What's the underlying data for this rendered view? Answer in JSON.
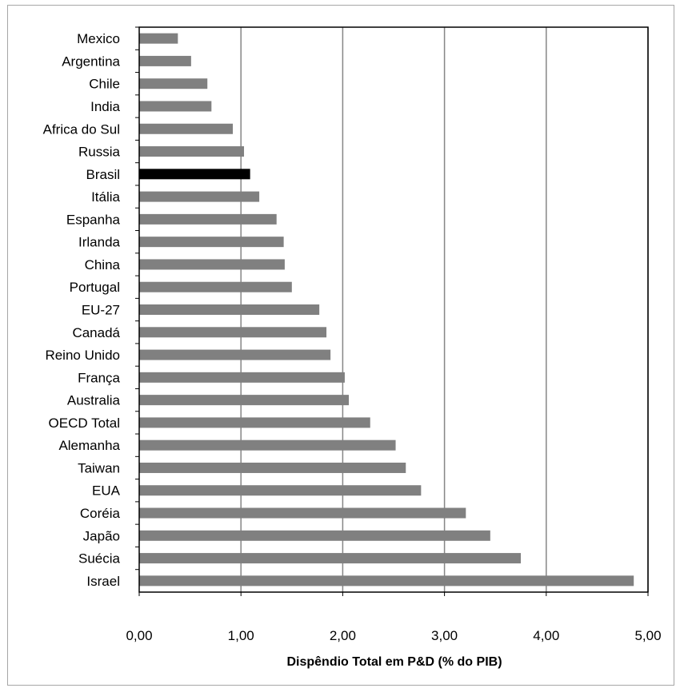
{
  "chart_data": {
    "type": "bar",
    "orientation": "horizontal",
    "categories": [
      "Mexico",
      "Argentina",
      "Chile",
      "India",
      "Africa do Sul",
      "Russia",
      "Brasil",
      "Itália",
      "Espanha",
      "Irlanda",
      "China",
      "Portugal",
      "EU-27",
      "Canadá",
      "Reino Unido",
      "França",
      "Australia",
      "OECD Total",
      "Alemanha",
      "Taiwan",
      "EUA",
      "Coréia",
      "Japão",
      "Suécia",
      "Israel"
    ],
    "values": [
      0.38,
      0.51,
      0.67,
      0.71,
      0.92,
      1.03,
      1.09,
      1.18,
      1.35,
      1.42,
      1.43,
      1.5,
      1.77,
      1.84,
      1.88,
      2.02,
      2.06,
      2.27,
      2.52,
      2.62,
      2.77,
      3.21,
      3.45,
      3.75,
      4.86
    ],
    "highlight": "Brasil",
    "xlabel": "Dispêndio Total em P&D (% do PIB)",
    "ylabel": "",
    "xlim": [
      0,
      5
    ],
    "xticks": [
      "0,00",
      "1,00",
      "2,00",
      "3,00",
      "4,00",
      "5,00"
    ],
    "grid": "vertical",
    "colors": {
      "bar": "#808080",
      "highlight": "#000000",
      "grid": "#868686",
      "frame": "#a6a6a6"
    }
  }
}
